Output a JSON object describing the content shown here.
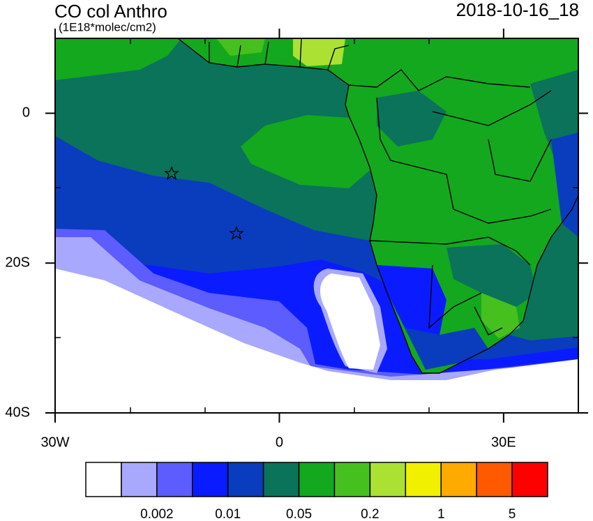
{
  "map": {
    "title": "CO col Anthro",
    "units": "(1E18*molec/cm2)",
    "date": "2018-10-16_18",
    "xlim": [
      -30,
      40
    ],
    "ylim": [
      -40,
      10
    ],
    "lon_ticks": [
      {
        "value": -30,
        "label": "30W"
      },
      0,
      {
        "value": 30,
        "label": "30E"
      }
    ],
    "lat_ticks": [
      0,
      {
        "value": -20,
        "label": "20S"
      },
      {
        "value": -40,
        "label": "40S"
      }
    ],
    "colorbar": {
      "colors": [
        "#ffffff",
        "#a8a8ff",
        "#5c5cff",
        "#0a1cff",
        "#0a3cbe",
        "#0a735a",
        "#14a81e",
        "#46c01e",
        "#aae132",
        "#f0f000",
        "#ffaa00",
        "#ff5a00",
        "#ff0000"
      ],
      "labels": [
        0.002,
        0.01,
        0.05,
        0.2,
        1,
        5
      ]
    }
  }
}
